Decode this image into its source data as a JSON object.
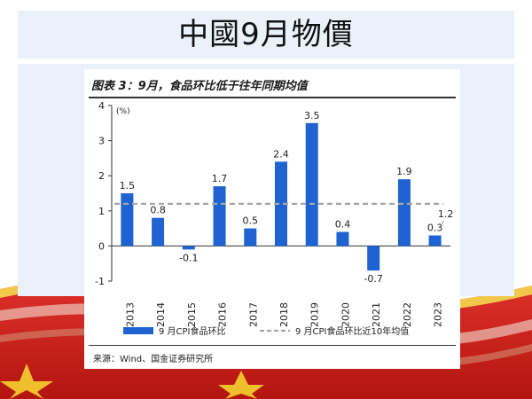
{
  "slide": {
    "title": "中國9月物價"
  },
  "chart_data": {
    "type": "bar",
    "title": "图表 3：9月，食品环比低于往年同期均值",
    "ylabel": "(%)",
    "ylim": [
      -1,
      4
    ],
    "yticks": [
      -1,
      0,
      1,
      2,
      3,
      4
    ],
    "categories": [
      "2013",
      "2014",
      "2015",
      "2016",
      "2017",
      "2018",
      "2019",
      "2020",
      "2021",
      "2022",
      "2023"
    ],
    "series": [
      {
        "name": "9 月CPI食品环比",
        "color": "#1f63d2",
        "values": [
          1.5,
          0.8,
          -0.1,
          1.7,
          0.5,
          2.4,
          3.5,
          0.4,
          -0.7,
          1.9,
          0.3
        ],
        "labels": [
          "1.5",
          "0.8",
          "-0.1",
          "1.7",
          "0.5",
          "2.4",
          "3.5",
          "0.4",
          "-0.7",
          "1.9",
          "0.3"
        ]
      }
    ],
    "reference_line": {
      "name": "9 月CPI食品环比近10年均值",
      "value": 1.2,
      "label": "1.2",
      "color": "#a6a6a6",
      "style": "dashed"
    },
    "grid": false,
    "legend": "bottom",
    "source": "来源：Wind、国金证券研究所"
  }
}
